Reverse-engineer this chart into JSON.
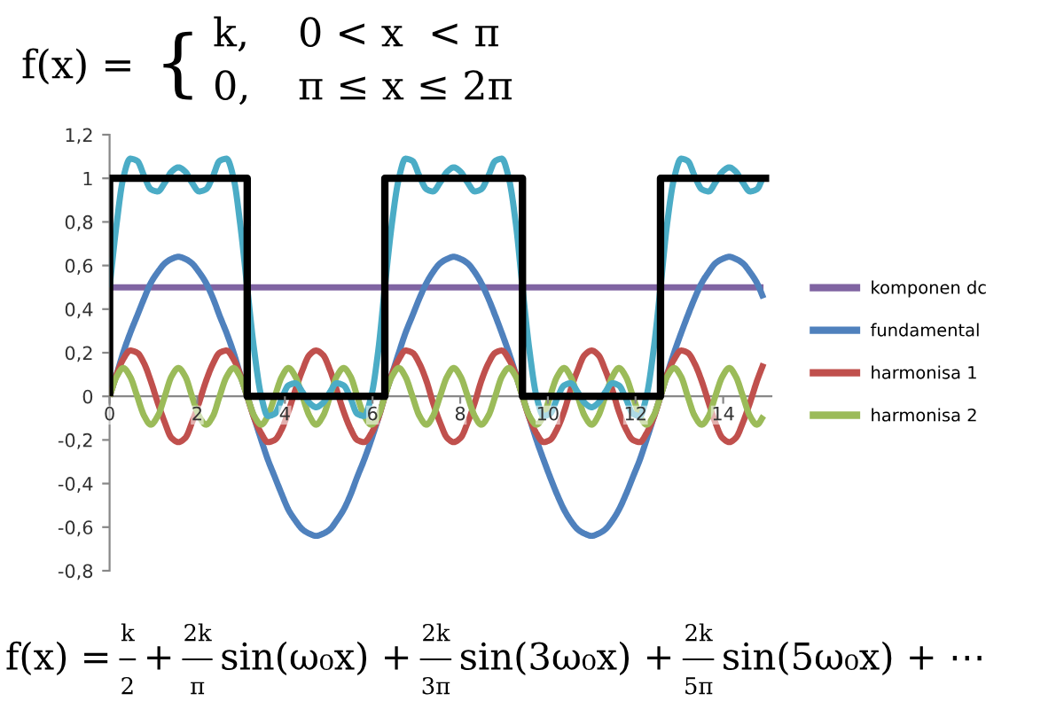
{
  "chart_data": {
    "type": "line",
    "x": [
      0,
      0.16,
      0.31,
      0.47,
      0.63,
      0.79,
      0.94,
      1.1,
      1.26,
      1.41,
      1.57,
      1.73,
      1.88,
      2.04,
      2.2,
      2.36,
      2.51,
      2.67,
      2.83,
      2.98,
      3.14,
      3.3,
      3.46,
      3.61,
      3.77,
      3.93,
      4.08,
      4.24,
      4.4,
      4.56,
      4.71,
      4.87,
      5.03,
      5.18,
      5.34,
      5.5,
      5.65,
      5.81,
      5.97,
      6.13,
      6.28,
      6.44,
      6.6,
      6.75,
      6.91,
      7.07,
      7.23,
      7.38,
      7.54,
      7.7,
      7.85,
      8.01,
      8.17,
      8.33,
      8.48,
      8.64,
      8.8,
      8.95,
      9.11,
      9.27,
      9.42,
      9.58,
      9.74,
      9.9,
      10.05,
      10.21,
      10.37,
      10.52,
      10.68,
      10.84,
      11.0,
      11.15,
      11.31,
      11.47,
      11.62,
      11.78,
      11.94,
      12.1,
      12.25,
      12.41,
      12.57,
      12.72,
      12.88,
      13.04,
      13.19,
      13.35,
      13.51,
      13.67,
      13.82,
      13.98,
      14.14,
      14.29,
      14.45,
      14.61,
      14.77,
      14.92
    ],
    "series": [
      {
        "name": "komponen dc",
        "color": "#8064a2",
        "x": [
          0,
          14.92
        ],
        "values": [
          0.5,
          0.5
        ]
      },
      {
        "name": "fundamental",
        "color": "#4f81bd",
        "values": [
          0,
          0.1,
          0.2,
          0.29,
          0.37,
          0.45,
          0.52,
          0.57,
          0.61,
          0.63,
          0.64,
          0.63,
          0.61,
          0.57,
          0.52,
          0.45,
          0.37,
          0.29,
          0.2,
          0.1,
          0,
          -0.1,
          -0.2,
          -0.29,
          -0.37,
          -0.45,
          -0.52,
          -0.57,
          -0.61,
          -0.63,
          -0.64,
          -0.63,
          -0.61,
          -0.57,
          -0.52,
          -0.45,
          -0.37,
          -0.29,
          -0.2,
          -0.1,
          0,
          0.1,
          0.2,
          0.29,
          0.37,
          0.45,
          0.52,
          0.57,
          0.61,
          0.63,
          0.64,
          0.63,
          0.61,
          0.57,
          0.52,
          0.45,
          0.37,
          0.29,
          0.2,
          0.1,
          0,
          -0.1,
          -0.2,
          -0.29,
          -0.37,
          -0.45,
          -0.52,
          -0.57,
          -0.61,
          -0.63,
          -0.64,
          -0.63,
          -0.61,
          -0.57,
          -0.52,
          -0.45,
          -0.37,
          -0.29,
          -0.2,
          -0.1,
          0,
          0.1,
          0.2,
          0.29,
          0.37,
          0.45,
          0.52,
          0.57,
          0.61,
          0.63,
          0.64,
          0.63,
          0.61,
          0.57,
          0.52,
          0.45
        ]
      },
      {
        "name": "harmonisa 1",
        "color": "#c0504d",
        "values": [
          0,
          0.1,
          0.17,
          0.21,
          0.2,
          0.15,
          0.07,
          -0.03,
          -0.12,
          -0.19,
          -0.21,
          -0.19,
          -0.12,
          -0.03,
          0.07,
          0.15,
          0.2,
          0.21,
          0.17,
          0.1,
          0,
          -0.1,
          -0.17,
          -0.21,
          -0.2,
          -0.15,
          -0.07,
          0.03,
          0.12,
          0.19,
          0.21,
          0.19,
          0.12,
          0.03,
          -0.07,
          -0.15,
          -0.2,
          -0.21,
          -0.17,
          -0.1,
          0,
          0.1,
          0.17,
          0.21,
          0.2,
          0.15,
          0.07,
          -0.03,
          -0.12,
          -0.19,
          -0.21,
          -0.19,
          -0.12,
          -0.03,
          0.07,
          0.15,
          0.2,
          0.21,
          0.17,
          0.1,
          0,
          -0.1,
          -0.17,
          -0.21,
          -0.2,
          -0.15,
          -0.07,
          0.03,
          0.12,
          0.19,
          0.21,
          0.19,
          0.12,
          0.03,
          -0.07,
          -0.15,
          -0.2,
          -0.21,
          -0.17,
          -0.1,
          0,
          0.1,
          0.17,
          0.21,
          0.2,
          0.15,
          0.07,
          -0.03,
          -0.12,
          -0.19,
          -0.21,
          -0.19,
          -0.12,
          -0.03,
          0.07,
          0.15
        ]
      },
      {
        "name": "harmonisa 2",
        "color": "#9bbb59",
        "values": [
          0,
          0.09,
          0.13,
          0.09,
          0,
          -0.09,
          -0.13,
          -0.09,
          0,
          0.09,
          0.13,
          0.09,
          0,
          -0.09,
          -0.13,
          -0.09,
          0,
          0.09,
          0.13,
          0.09,
          0,
          -0.09,
          -0.13,
          -0.09,
          0,
          0.09,
          0.13,
          0.09,
          0,
          -0.09,
          -0.13,
          -0.09,
          0,
          0.09,
          0.13,
          0.09,
          0,
          -0.09,
          -0.13,
          -0.09,
          0,
          0.09,
          0.13,
          0.09,
          0,
          -0.09,
          -0.13,
          -0.09,
          0,
          0.09,
          0.13,
          0.09,
          0,
          -0.09,
          -0.13,
          -0.09,
          0,
          0.09,
          0.13,
          0.09,
          0,
          -0.09,
          -0.13,
          -0.09,
          0,
          0.09,
          0.13,
          0.09,
          0,
          -0.09,
          -0.13,
          -0.09,
          0,
          0.09,
          0.13,
          0.09,
          0,
          -0.09,
          -0.13,
          -0.09,
          0,
          0.09,
          0.13,
          0.09,
          0,
          -0.09,
          -0.13,
          -0.09,
          0,
          0.09,
          0.13,
          0.09,
          0,
          -0.09,
          -0.13,
          -0.09
        ]
      },
      {
        "color": "#4bacc6",
        "values": [
          0.5,
          0.79,
          1.0,
          1.09,
          1.08,
          1.01,
          0.95,
          0.94,
          0.98,
          1.03,
          1.05,
          1.03,
          0.98,
          0.94,
          0.95,
          1.01,
          1.08,
          1.09,
          1.0,
          0.79,
          0.5,
          0.21,
          0.0,
          -0.09,
          -0.08,
          -0.01,
          0.05,
          0.06,
          0.02,
          -0.03,
          -0.05,
          -0.03,
          0.02,
          0.06,
          0.05,
          -0.01,
          -0.08,
          -0.09,
          0.0,
          0.21,
          0.5,
          0.79,
          1.0,
          1.09,
          1.08,
          1.01,
          0.95,
          0.94,
          0.98,
          1.03,
          1.05,
          1.03,
          0.98,
          0.94,
          0.95,
          1.01,
          1.08,
          1.09,
          1.0,
          0.79,
          0.5,
          0.21,
          0.0,
          -0.09,
          -0.08,
          -0.01,
          0.05,
          0.06,
          0.02,
          -0.03,
          -0.05,
          -0.03,
          0.02,
          0.06,
          0.05,
          -0.01,
          -0.08,
          -0.09,
          0.0,
          0.21,
          0.5,
          0.79,
          1.0,
          1.09,
          1.08,
          1.01,
          0.95,
          0.94,
          0.98,
          1.03,
          1.05,
          1.03,
          0.98,
          0.94,
          0.95,
          1.01
        ]
      },
      {
        "color": "#000000",
        "x": [
          0,
          0,
          3.14,
          3.14,
          6.28,
          6.28,
          9.42,
          9.42,
          12.57,
          12.57,
          15.05
        ],
        "values": [
          0,
          1,
          1,
          0,
          0,
          1,
          1,
          0,
          0,
          1,
          1
        ]
      }
    ],
    "xlim": [
      0,
      15.1
    ],
    "xticks": [
      0,
      2,
      4,
      6,
      8,
      10,
      12,
      14
    ],
    "ylim": [
      -0.8,
      1.2
    ],
    "yticks": [
      {
        "value": -0.8,
        "label": "-0,8"
      },
      {
        "value": -0.6,
        "label": "-0,6"
      },
      {
        "value": -0.4,
        "label": "-0,4"
      },
      {
        "value": -0.2,
        "label": "-0,2"
      },
      0,
      {
        "value": 0.2,
        "label": "0,2"
      },
      {
        "value": 0.4,
        "label": "0,4"
      },
      {
        "value": 0.6,
        "label": "0,6"
      },
      {
        "value": 0.8,
        "label": "0,8"
      },
      1,
      {
        "value": 1.2,
        "label": "1,2"
      }
    ],
    "legend": "right",
    "annotations": [
      "f(x) =",
      "{",
      "k,",
      "0 < x  < π",
      "0,",
      "π ≤ x ≤ 2π",
      "f(x) =",
      "k",
      "2",
      "+",
      "2k",
      "π",
      "sin(ω₀x) +",
      "2k",
      "3π",
      "sin(3ω₀x) +",
      "2k",
      "5π",
      "sin(5ω₀x) + ⋯"
    ]
  }
}
